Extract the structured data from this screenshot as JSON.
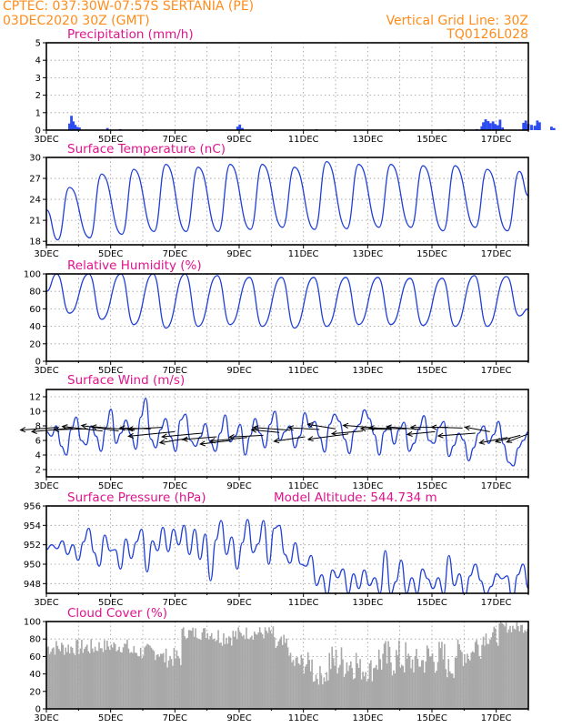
{
  "header": {
    "left_line1": "CPTEC:   037:30W-07:57S   SERTANIA (PE)",
    "left_line2": "03DEC2020 30Z (GMT)",
    "right_line1": "Vertical Grid Line: 30Z",
    "right_line2": "TQ0126L028"
  },
  "colors": {
    "header": "#ff8c1a",
    "panel_title": "#e0148c",
    "series": "#1f3fd6",
    "precip_bar": "#2b4cf0",
    "cloud": "#a8a8a8",
    "wind_arrow": "#000000"
  },
  "chart_data": [
    {
      "id": "precip",
      "type": "bar",
      "title": "Precipitation (mm/h)",
      "x_tick_labels": [
        "3DEC",
        "5DEC",
        "7DEC",
        "9DEC",
        "11DEC",
        "13DEC",
        "15DEC",
        "17DEC"
      ],
      "ylim": [
        0,
        5
      ],
      "yticks": [
        0,
        1,
        2,
        3,
        4,
        5
      ],
      "grid": true,
      "units": "mm/h",
      "x_range_days": [
        0,
        15
      ],
      "bars": [
        [
          0.72,
          0.38
        ],
        [
          0.78,
          0.82
        ],
        [
          0.84,
          0.5
        ],
        [
          0.9,
          0.3
        ],
        [
          0.97,
          0.18
        ],
        [
          1.03,
          0.15
        ],
        [
          1.9,
          0.12
        ],
        [
          2.3,
          0.06
        ],
        [
          3.1,
          0.05
        ],
        [
          5.95,
          0.2
        ],
        [
          6.02,
          0.32
        ],
        [
          6.1,
          0.12
        ],
        [
          8.4,
          0.05
        ],
        [
          12.5,
          0.04
        ],
        [
          13.4,
          0.06
        ],
        [
          13.55,
          0.22
        ],
        [
          13.6,
          0.45
        ],
        [
          13.67,
          0.62
        ],
        [
          13.75,
          0.52
        ],
        [
          13.82,
          0.4
        ],
        [
          13.9,
          0.5
        ],
        [
          13.97,
          0.35
        ],
        [
          14.05,
          0.28
        ],
        [
          14.12,
          0.6
        ],
        [
          14.2,
          0.15
        ],
        [
          14.85,
          0.42
        ],
        [
          14.92,
          0.55
        ],
        [
          15.0,
          0.35
        ],
        [
          15.1,
          0.3
        ],
        [
          15.2,
          0.25
        ],
        [
          15.28,
          0.55
        ],
        [
          15.35,
          0.45
        ],
        [
          15.72,
          0.2
        ],
        [
          15.8,
          0.12
        ]
      ]
    },
    {
      "id": "temperature",
      "type": "line",
      "title": "Surface Temperature (nC)",
      "x_tick_labels": [
        "3DEC",
        "5DEC",
        "7DEC",
        "9DEC",
        "11DEC",
        "13DEC",
        "15DEC",
        "17DEC"
      ],
      "ylim": [
        17.5,
        30
      ],
      "yticks": [
        18,
        21,
        24,
        27,
        30
      ],
      "grid": true,
      "units": "C",
      "x_range_days": [
        0,
        15
      ],
      "daily_max": [
        25.7,
        27.6,
        28.3,
        29.0,
        28.6,
        29.0,
        29.0,
        28.6,
        29.4,
        29.0,
        29.0,
        28.8,
        28.8,
        28.3,
        28.0,
        27.8
      ],
      "daily_min": [
        18.2,
        18.5,
        19.0,
        19.4,
        19.4,
        19.4,
        19.7,
        20.0,
        19.7,
        19.8,
        20.0,
        20.0,
        19.5,
        20.0,
        19.5,
        24.5
      ],
      "start_value": 22.5
    },
    {
      "id": "humidity",
      "type": "line",
      "title": "Relative Humidity (%)",
      "x_tick_labels": [
        "3DEC",
        "5DEC",
        "7DEC",
        "9DEC",
        "11DEC",
        "13DEC",
        "15DEC",
        "17DEC"
      ],
      "ylim": [
        0,
        100
      ],
      "yticks": [
        0,
        20,
        40,
        60,
        80,
        100
      ],
      "grid": true,
      "units": "%",
      "x_range_days": [
        0,
        15
      ],
      "daily_max": [
        100,
        100,
        100,
        100,
        100,
        98,
        96,
        96,
        96,
        96,
        96,
        95,
        95,
        98,
        97,
        97
      ],
      "daily_min": [
        55,
        48,
        42,
        38,
        40,
        42,
        40,
        38,
        40,
        42,
        42,
        41,
        40,
        40,
        52,
        60
      ],
      "start_value": 80
    },
    {
      "id": "wind",
      "type": "line",
      "title": "Surface Wind (m/s)",
      "x_tick_labels": [
        "3DEC",
        "5DEC",
        "7DEC",
        "9DEC",
        "11DEC",
        "13DEC",
        "15DEC",
        "17DEC"
      ],
      "ylim": [
        1,
        13
      ],
      "yticks": [
        2,
        4,
        6,
        8,
        10,
        12
      ],
      "grid": true,
      "units": "m/s",
      "x_range_days": [
        0,
        15
      ],
      "speed": [
        7.2,
        6.6,
        8.0,
        5.2,
        4.0,
        7.5,
        9.2,
        6.0,
        5.4,
        8.0,
        6.6,
        4.5,
        7.8,
        10.3,
        5.6,
        7.0,
        8.8,
        6.8,
        4.8,
        9.2,
        11.8,
        6.2,
        5.0,
        7.5,
        9.0,
        6.5,
        4.5,
        8.8,
        9.6,
        6.0,
        5.2,
        6.5,
        8.3,
        5.8,
        4.5,
        7.0,
        9.5,
        5.8,
        6.6,
        8.2,
        4.0,
        6.6,
        9.0,
        7.0,
        5.0,
        8.2,
        10.0,
        6.0,
        7.2,
        8.0,
        5.0,
        6.6,
        9.8,
        7.8,
        8.6,
        6.5,
        4.4,
        8.2,
        9.6,
        8.6,
        6.2,
        4.2,
        7.4,
        8.2,
        10.2,
        9.0,
        6.8,
        4.0,
        7.2,
        8.0,
        5.5,
        7.5,
        8.5,
        4.5,
        5.6,
        7.6,
        9.4,
        6.0,
        5.6,
        7.8,
        8.6,
        3.8,
        5.3,
        7.0,
        6.0,
        3.2,
        5.0,
        7.0,
        8.0,
        5.6,
        6.8,
        8.6,
        5.5,
        3.0,
        2.5,
        5.0,
        6.0,
        7.2
      ],
      "arrows": [
        [
          0.35,
          7.8,
          -1.2,
          -0.3
        ],
        [
          0.8,
          7.7,
          -1.3,
          -0.4
        ],
        [
          1.3,
          7.6,
          -1.1,
          -0.1
        ],
        [
          1.75,
          7.3,
          -1.3,
          0.5
        ],
        [
          2.25,
          7.3,
          -1.2,
          0.6
        ],
        [
          2.75,
          7.4,
          -1.4,
          0.4
        ],
        [
          3.25,
          7.6,
          -1.0,
          0.1
        ],
        [
          3.6,
          7.8,
          -1.1,
          -0.2
        ],
        [
          4.0,
          7.2,
          -1.5,
          -0.5
        ],
        [
          4.4,
          6.3,
          -0.9,
          -0.5
        ],
        [
          4.85,
          7.0,
          -1.3,
          -0.4
        ],
        [
          5.3,
          6.5,
          -1.1,
          -0.3
        ],
        [
          5.75,
          6.0,
          -1.0,
          -0.4
        ],
        [
          6.25,
          6.4,
          -1.2,
          -0.4
        ],
        [
          6.75,
          6.7,
          -1.1,
          -0.2
        ],
        [
          7.25,
          7.1,
          -0.9,
          0.3
        ],
        [
          7.6,
          7.4,
          -1.2,
          0.3
        ],
        [
          8.05,
          6.5,
          -1.0,
          -0.5
        ],
        [
          8.5,
          7.5,
          -1.0,
          0.2
        ],
        [
          9.0,
          7.6,
          -0.9,
          0.5
        ],
        [
          9.4,
          6.9,
          -1.3,
          -0.6
        ],
        [
          9.85,
          7.3,
          -1.0,
          -0.3
        ],
        [
          10.3,
          7.7,
          -1.1,
          0.3
        ],
        [
          10.75,
          7.5,
          -1.0,
          0.1
        ],
        [
          11.2,
          7.6,
          -1.2,
          0.1
        ],
        [
          11.65,
          7.5,
          -1.1,
          0.3
        ],
        [
          12.1,
          7.2,
          -0.9,
          -0.3
        ],
        [
          12.5,
          7.8,
          -1.2,
          0.0
        ],
        [
          12.95,
          7.7,
          -1.0,
          0.1
        ],
        [
          13.35,
          7.0,
          -1.2,
          -0.3
        ],
        [
          13.8,
          7.2,
          -0.8,
          0.5
        ],
        [
          14.35,
          6.4,
          -0.9,
          -0.6
        ],
        [
          14.75,
          6.7,
          -0.8,
          -0.7
        ],
        [
          15.0,
          6.9,
          -0.7,
          -0.9
        ]
      ]
    },
    {
      "id": "pressure",
      "type": "line",
      "title": "Surface Pressure (hPa)",
      "annotation": "Model Altitude: 544.734 m",
      "x_tick_labels": [
        "3DEC",
        "5DEC",
        "7DEC",
        "9DEC",
        "11DEC",
        "13DEC",
        "15DEC",
        "17DEC"
      ],
      "ylim": [
        947,
        956
      ],
      "yticks": [
        948,
        950,
        952,
        954,
        956
      ],
      "grid": true,
      "units": "hPa",
      "x_range_days": [
        0,
        15
      ],
      "values": [
        951.5,
        952.0,
        951.6,
        952.4,
        951.0,
        952.0,
        950.4,
        952.3,
        953.7,
        951.2,
        949.8,
        953.0,
        951.4,
        951.5,
        949.5,
        952.6,
        950.6,
        952.3,
        953.6,
        949.2,
        952.4,
        951.4,
        953.8,
        951.3,
        953.6,
        952.0,
        954.0,
        951.0,
        953.6,
        950.5,
        953.1,
        948.3,
        952.5,
        954.5,
        951.0,
        952.8,
        949.5,
        952.2,
        954.6,
        951.2,
        952.1,
        954.5,
        950.0,
        953.7,
        954.0,
        951.0,
        950.1,
        952.2,
        950.0,
        949.8,
        950.9,
        947.8,
        948.9,
        946.8,
        949.4,
        948.6,
        949.5,
        947.0,
        949.0,
        947.5,
        949.4,
        947.8,
        948.6,
        947.0,
        951.4,
        946.9,
        948.2,
        950.4,
        947.0,
        948.6,
        947.0,
        949.5,
        948.5,
        947.5,
        948.6,
        946.9,
        950.9,
        947.8,
        949.0,
        946.6,
        948.8,
        950.0,
        948.3,
        946.9,
        947.7,
        949.0,
        948.5,
        948.8,
        946.2,
        948.9,
        950.0,
        947.5
      ],
      "lower_axis_shows": "values below 947 are clipped"
    },
    {
      "id": "cloud",
      "type": "area",
      "title": "Cloud Cover (%)",
      "x_tick_labels": [
        "3DEC",
        "5DEC",
        "7DEC",
        "9DEC",
        "11DEC",
        "13DEC",
        "15DEC",
        "17DEC"
      ],
      "ylim": [
        0,
        100
      ],
      "yticks": [
        0,
        20,
        40,
        60,
        80,
        100
      ],
      "grid": true,
      "units": "%",
      "x_range_days": [
        0,
        15
      ],
      "segments": [
        [
          0.0,
          50,
          80
        ],
        [
          1.6,
          55,
          80
        ],
        [
          2.6,
          45,
          75
        ],
        [
          3.6,
          35,
          70
        ],
        [
          4.2,
          70,
          95
        ],
        [
          5.2,
          60,
          95
        ],
        [
          6.1,
          70,
          95
        ],
        [
          7.1,
          45,
          85
        ],
        [
          7.6,
          25,
          65
        ],
        [
          8.3,
          15,
          50
        ],
        [
          8.8,
          10,
          75
        ],
        [
          9.7,
          15,
          60
        ],
        [
          10.2,
          10,
          80
        ],
        [
          11.2,
          20,
          70
        ],
        [
          11.8,
          15,
          80
        ],
        [
          12.4,
          20,
          60
        ],
        [
          12.7,
          30,
          80
        ],
        [
          13.3,
          40,
          90
        ],
        [
          13.6,
          60,
          95
        ],
        [
          14.1,
          80,
          100
        ],
        [
          15.0,
          60,
          90
        ]
      ]
    }
  ]
}
